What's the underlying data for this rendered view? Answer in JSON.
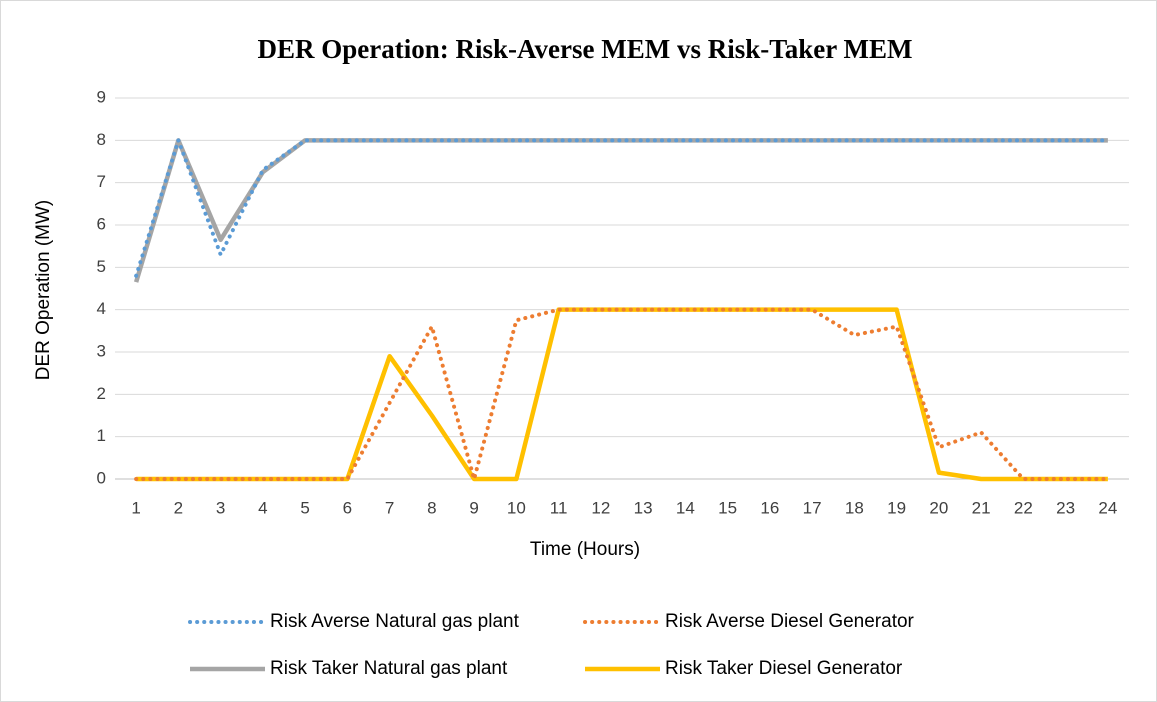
{
  "chart_data": {
    "type": "line",
    "title": "DER Operation: Risk-Averse MEM vs Risk-Taker MEM",
    "xlabel": "Time (Hours)",
    "ylabel": "DER Operation (MW)",
    "categories": [
      "1",
      "2",
      "3",
      "4",
      "5",
      "6",
      "7",
      "8",
      "9",
      "10",
      "11",
      "12",
      "13",
      "14",
      "15",
      "16",
      "17",
      "18",
      "19",
      "20",
      "21",
      "22",
      "23",
      "24"
    ],
    "series": [
      {
        "name": "Risk Averse Natural gas plant",
        "color": "#5b9bd5",
        "style": "dotted",
        "values": [
          4.8,
          8,
          5.3,
          7.3,
          8,
          8,
          8,
          8,
          8,
          8,
          8,
          8,
          8,
          8,
          8,
          8,
          8,
          8,
          8,
          8,
          8,
          8,
          8,
          8
        ]
      },
      {
        "name": "Risk Averse Diesel Generator",
        "color": "#ed7d31",
        "style": "dotted",
        "values": [
          0,
          0,
          0,
          0,
          0,
          0,
          1.8,
          3.6,
          0,
          3.75,
          4,
          4,
          4,
          4,
          4,
          4,
          4,
          3.4,
          3.6,
          0.75,
          1.1,
          0,
          0,
          0
        ]
      },
      {
        "name": "Risk Taker Natural gas plant",
        "color": "#a5a5a5",
        "style": "solid",
        "values": [
          4.65,
          8,
          5.65,
          7.25,
          8,
          8,
          8,
          8,
          8,
          8,
          8,
          8,
          8,
          8,
          8,
          8,
          8,
          8,
          8,
          8,
          8,
          8,
          8,
          8
        ]
      },
      {
        "name": "Risk Taker Diesel Generator",
        "color": "#ffc000",
        "style": "solid",
        "values": [
          0,
          0,
          0,
          0,
          0,
          0,
          2.9,
          1.5,
          0,
          0,
          4,
          4,
          4,
          4,
          4,
          4,
          4,
          4,
          4,
          0.15,
          0,
          0,
          0,
          0
        ]
      }
    ],
    "ylim": [
      0,
      9
    ],
    "yticks": [
      0,
      1,
      2,
      3,
      4,
      5,
      6,
      7,
      8,
      9
    ],
    "grid": true,
    "legend": "bottom"
  }
}
